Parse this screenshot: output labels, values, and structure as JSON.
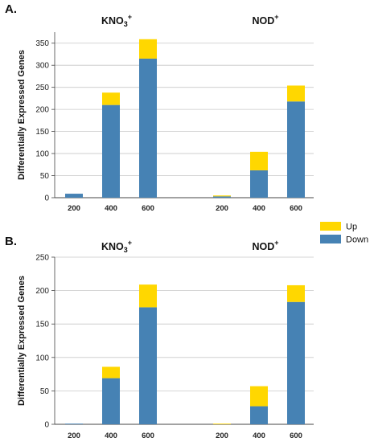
{
  "panels": [
    {
      "letter": "A.",
      "group_titles": [
        {
          "base": "KNO",
          "sub": "3",
          "sup": "+"
        },
        {
          "base": "NOD",
          "sub": "",
          "sup": "+"
        }
      ]
    },
    {
      "letter": "B.",
      "group_titles": [
        {
          "base": "KNO",
          "sub": "3",
          "sup": "+"
        },
        {
          "base": "NOD",
          "sub": "",
          "sup": "+"
        }
      ]
    }
  ],
  "legend": {
    "items": [
      {
        "label": "Up",
        "color": "#ffd700"
      },
      {
        "label": "Down",
        "color": "#4682b4"
      }
    ]
  },
  "chart_data": [
    {
      "type": "bar",
      "stacked": true,
      "panel": "A.",
      "groups": [
        "KNO3+",
        "NOD+"
      ],
      "categories": [
        "200",
        "400",
        "600",
        "200",
        "400",
        "600"
      ],
      "ylabel": "Differentially Expressed Genes",
      "ylim": [
        0,
        375
      ],
      "yticks": [
        0,
        50,
        100,
        150,
        200,
        250,
        300,
        350
      ],
      "grid": true,
      "series": [
        {
          "name": "Down",
          "color": "#4682b4",
          "values": [
            9,
            210,
            315,
            3,
            62,
            218
          ]
        },
        {
          "name": "Up",
          "color": "#ffd700",
          "values": [
            0,
            28,
            44,
            2,
            42,
            36
          ]
        }
      ]
    },
    {
      "type": "bar",
      "stacked": true,
      "panel": "B.",
      "groups": [
        "KNO3+",
        "NOD+"
      ],
      "categories": [
        "200",
        "400",
        "600",
        "200",
        "400",
        "600"
      ],
      "ylabel": "Differentially Expressed Genes",
      "ylim": [
        0,
        250
      ],
      "yticks": [
        0,
        50,
        100,
        150,
        200,
        250
      ],
      "grid": true,
      "series": [
        {
          "name": "Down",
          "color": "#4682b4",
          "values": [
            1,
            69,
            175,
            0,
            27,
            183
          ]
        },
        {
          "name": "Up",
          "color": "#ffd700",
          "values": [
            0,
            17,
            34,
            1,
            30,
            25
          ]
        }
      ]
    }
  ]
}
